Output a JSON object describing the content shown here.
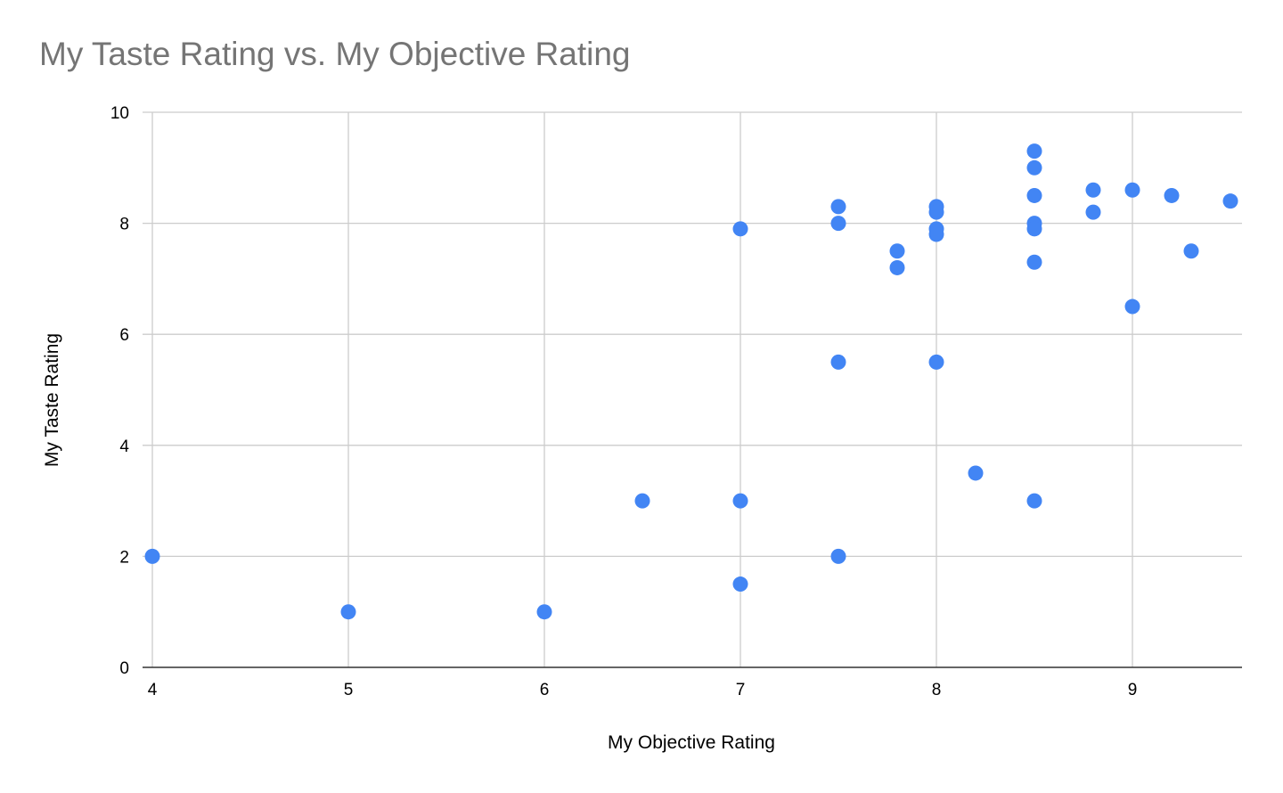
{
  "chart_data": {
    "type": "scatter",
    "title": "My Taste Rating vs. My Objective Rating",
    "xlabel": "My Objective Rating",
    "ylabel": "My Taste Rating",
    "xlim": [
      4,
      9.55
    ],
    "ylim": [
      0,
      10
    ],
    "x_ticks": [
      "4",
      "5",
      "6",
      "7",
      "8",
      "9"
    ],
    "y_ticks": [
      "0",
      "2",
      "4",
      "6",
      "8",
      "10"
    ],
    "grid": true,
    "legend": "none",
    "series": [
      {
        "color": "#4285f4",
        "points": [
          {
            "x": 4,
            "y": 2
          },
          {
            "x": 5,
            "y": 1
          },
          {
            "x": 6,
            "y": 1
          },
          {
            "x": 6.5,
            "y": 3
          },
          {
            "x": 7,
            "y": 7.9
          },
          {
            "x": 7,
            "y": 3
          },
          {
            "x": 7,
            "y": 1.5
          },
          {
            "x": 7.5,
            "y": 8.3
          },
          {
            "x": 7.5,
            "y": 8
          },
          {
            "x": 7.5,
            "y": 5.5
          },
          {
            "x": 7.5,
            "y": 2
          },
          {
            "x": 7.8,
            "y": 7.5
          },
          {
            "x": 7.8,
            "y": 7.2
          },
          {
            "x": 8,
            "y": 8.3
          },
          {
            "x": 8,
            "y": 8.2
          },
          {
            "x": 8,
            "y": 7.9
          },
          {
            "x": 8,
            "y": 7.8
          },
          {
            "x": 8,
            "y": 5.5
          },
          {
            "x": 8.2,
            "y": 3.5
          },
          {
            "x": 8.5,
            "y": 9.3
          },
          {
            "x": 8.5,
            "y": 9
          },
          {
            "x": 8.5,
            "y": 8.5
          },
          {
            "x": 8.5,
            "y": 8
          },
          {
            "x": 8.5,
            "y": 7.9
          },
          {
            "x": 8.5,
            "y": 7.3
          },
          {
            "x": 8.5,
            "y": 3
          },
          {
            "x": 8.8,
            "y": 8.6
          },
          {
            "x": 8.8,
            "y": 8.2
          },
          {
            "x": 9,
            "y": 8.6
          },
          {
            "x": 9,
            "y": 6.5
          },
          {
            "x": 9.2,
            "y": 8.5
          },
          {
            "x": 9.3,
            "y": 7.5
          },
          {
            "x": 9.5,
            "y": 8.4
          }
        ]
      }
    ]
  }
}
